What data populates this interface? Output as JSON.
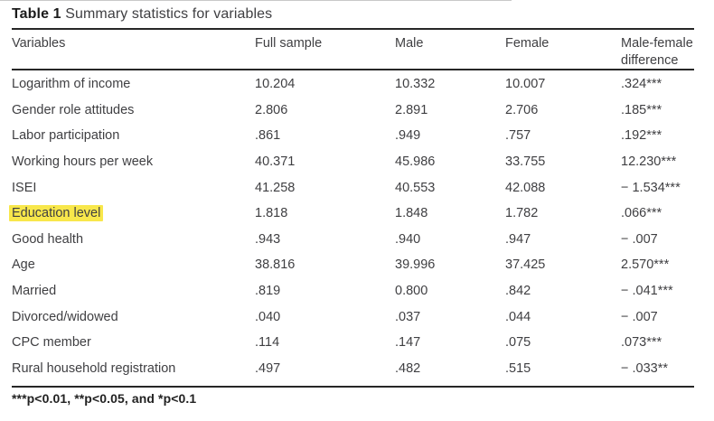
{
  "caption": {
    "label": "Table 1",
    "text": "Summary statistics for variables"
  },
  "table": {
    "columns": [
      "Variables",
      "Full sample",
      "Male",
      "Female",
      "Male-female\ndifference"
    ],
    "rows": [
      {
        "variable": "Logarithm of income",
        "full_sample": "10.204",
        "male": "10.332",
        "female": "10.007",
        "difference": ".324***",
        "highlighted": false
      },
      {
        "variable": "Gender role attitudes",
        "full_sample": "2.806",
        "male": "2.891",
        "female": "2.706",
        "difference": ".185***",
        "highlighted": false
      },
      {
        "variable": "Labor participation",
        "full_sample": ".861",
        "male": ".949",
        "female": ".757",
        "difference": ".192***",
        "highlighted": false
      },
      {
        "variable": "Working hours per week",
        "full_sample": "40.371",
        "male": "45.986",
        "female": "33.755",
        "difference": "12.230***",
        "highlighted": false
      },
      {
        "variable": "ISEI",
        "full_sample": "41.258",
        "male": "40.553",
        "female": "42.088",
        "difference": "− 1.534***",
        "highlighted": false
      },
      {
        "variable": "Education level",
        "full_sample": "1.818",
        "male": "1.848",
        "female": "1.782",
        "difference": ".066***",
        "highlighted": true
      },
      {
        "variable": "Good health",
        "full_sample": ".943",
        "male": ".940",
        "female": ".947",
        "difference": "− .007",
        "highlighted": false
      },
      {
        "variable": "Age",
        "full_sample": "38.816",
        "male": "39.996",
        "female": "37.425",
        "difference": "2.570***",
        "highlighted": false
      },
      {
        "variable": "Married",
        "full_sample": ".819",
        "male": "0.800",
        "female": ".842",
        "difference": "− .041***",
        "highlighted": false
      },
      {
        "variable": "Divorced/widowed",
        "full_sample": ".040",
        "male": ".037",
        "female": ".044",
        "difference": "− .007",
        "highlighted": false
      },
      {
        "variable": "CPC member",
        "full_sample": ".114",
        "male": ".147",
        "female": ".075",
        "difference": ".073***",
        "highlighted": false
      },
      {
        "variable": "Rural household registration",
        "full_sample": ".497",
        "male": ".482",
        "female": ".515",
        "difference": "− .033**",
        "highlighted": false
      }
    ]
  },
  "footnote": "***p<0.01, **p<0.05, and *p<0.1",
  "colors": {
    "highlight": "#f8e74b",
    "text": "#3f3f42",
    "rule": "#272727"
  }
}
